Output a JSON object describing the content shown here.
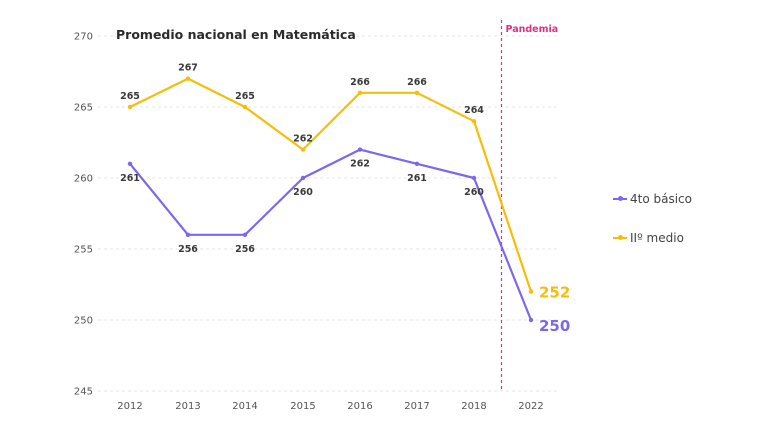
{
  "chart_data": {
    "type": "line",
    "title": "Promedio nacional en Matemática",
    "categories": [
      "2012",
      "2013",
      "2014",
      "2015",
      "2016",
      "2017",
      "2018",
      "2022"
    ],
    "ylim": [
      245,
      270
    ],
    "yticks": [
      245,
      250,
      255,
      260,
      265,
      270
    ],
    "grid": true,
    "legend_position": "right",
    "series": [
      {
        "name": "4to básico",
        "color": "#7B68EE",
        "values": [
          261,
          256,
          256,
          260,
          262,
          261,
          260,
          250
        ]
      },
      {
        "name": "IIº medio",
        "color": "#F5BE0B",
        "values": [
          265,
          267,
          265,
          262,
          266,
          266,
          264,
          252
        ]
      }
    ],
    "annotations": [
      {
        "text": "Pandemia",
        "after_category": "2018",
        "color": "#E5307A"
      }
    ]
  }
}
